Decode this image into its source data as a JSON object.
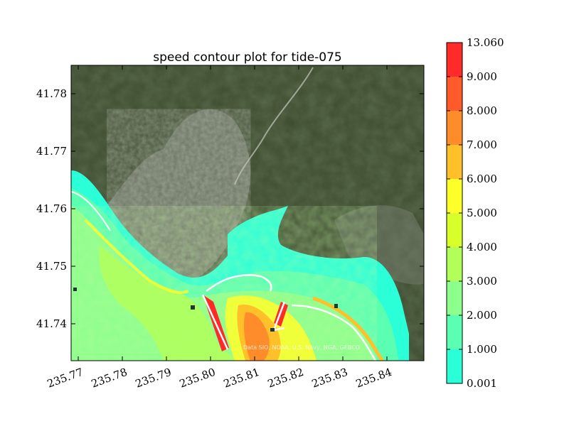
{
  "plot": {
    "title": "speed contour plot for tide-075",
    "attribution": "Data SIO, NOAA, U.S. Navy, NGA, GEBCO"
  },
  "axes": {
    "x_ticks": [
      "235.77",
      "235.78",
      "235.79",
      "235.80",
      "235.81",
      "235.82",
      "235.83",
      "235.84"
    ],
    "y_ticks": [
      "41.78",
      "41.77",
      "41.76",
      "41.75",
      "41.74"
    ]
  },
  "colorbar": {
    "labels": [
      "13.060",
      "9.000",
      "8.000",
      "7.000",
      "6.000",
      "5.000",
      "4.000",
      "3.000",
      "2.000",
      "1.000",
      "0.001"
    ],
    "colors": [
      "#ff2a2a",
      "#ff5a2a",
      "#ff8c2a",
      "#ffc02a",
      "#ffff2a",
      "#d8ff2a",
      "#b2ff5a",
      "#8cff8c",
      "#5affb2",
      "#2affd8",
      "#2affff"
    ]
  },
  "map": {
    "land_color": "#3d4a2e",
    "urban_color": "#8b8f84",
    "water_contour_colors": [
      "#2affff",
      "#5affb2",
      "#8cff8c",
      "#b2ff5a",
      "#ffff2a",
      "#ffc02a",
      "#ff8c2a",
      "#ff2a2a"
    ]
  }
}
